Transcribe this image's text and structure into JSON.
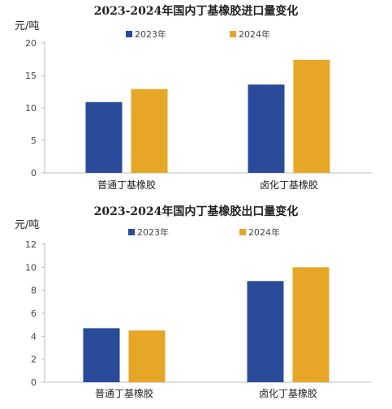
{
  "chart_data": [
    {
      "type": "bar",
      "title": "2023-2024年国内丁基橡胶进口量变化",
      "ylabel": "元/吨",
      "xlabel": "",
      "categories": [
        "普通丁基橡胶",
        "卤化丁基橡胶"
      ],
      "series": [
        {
          "name": "2023年",
          "values": [
            10.9,
            13.6
          ],
          "color": "#2a4a9a"
        },
        {
          "name": "2024年",
          "values": [
            12.9,
            17.4
          ],
          "color": "#e6a626"
        }
      ],
      "ylim": [
        0,
        20
      ],
      "yticks": [
        0,
        5,
        10,
        15,
        20
      ],
      "legend": "top",
      "grid": false
    },
    {
      "type": "bar",
      "title": "2023-2024年国内丁基橡胶出口量变化",
      "ylabel": "元/吨",
      "xlabel": "",
      "categories": [
        "普通丁基橡胶",
        "卤化丁基橡胶"
      ],
      "series": [
        {
          "name": "2023年",
          "values": [
            4.7,
            8.8
          ],
          "color": "#2a4a9a"
        },
        {
          "name": "2024年",
          "values": [
            4.5,
            10.0
          ],
          "color": "#e6a626"
        }
      ],
      "ylim": [
        0,
        12
      ],
      "yticks": [
        0,
        2,
        4,
        6,
        8,
        10,
        12
      ],
      "legend": "top",
      "grid": false
    }
  ]
}
